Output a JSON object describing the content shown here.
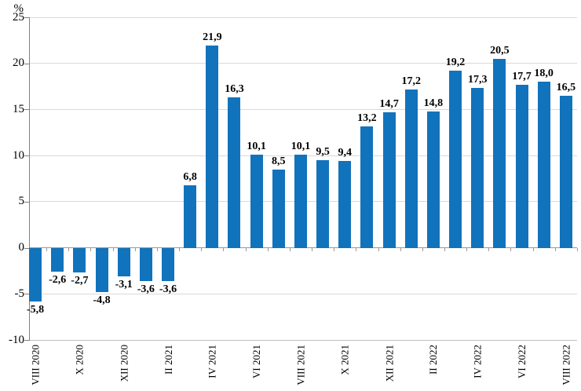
{
  "chart_data": {
    "type": "bar",
    "title": "",
    "xlabel": "",
    "ylabel": "%",
    "ylim": [
      -10,
      25
    ],
    "ytick_step": 5,
    "y_tick_labels": [
      "25",
      "20",
      "15",
      "10",
      "5",
      "0",
      "-5",
      "-10"
    ],
    "x_tick_labels": [
      "VIII 2020",
      "",
      "X 2020",
      "",
      "XII 2020",
      "",
      "II 2021",
      "",
      "IV 2021",
      "",
      "VI 2021",
      "",
      "VIII 2021",
      "",
      "X 2021",
      "",
      "XII 2021",
      "",
      "II 2022",
      "",
      "IV 2022",
      "",
      "VI 2022",
      "",
      "VIII 2022"
    ],
    "values": [
      -5.8,
      -2.6,
      -2.7,
      -4.8,
      -3.1,
      -3.6,
      -3.6,
      6.8,
      21.9,
      16.3,
      10.1,
      8.5,
      10.1,
      9.5,
      9.4,
      13.2,
      14.7,
      17.2,
      14.8,
      19.2,
      17.3,
      20.5,
      17.7,
      18.0,
      16.5
    ],
    "value_labels": [
      "-5,8",
      "-2,6",
      "-2,7",
      "-4,8",
      "-3,1",
      "-3,6",
      "-3,6",
      "6,8",
      "21,9",
      "16,3",
      "10,1",
      "8,5",
      "10,1",
      "9,5",
      "9,4",
      "13,2",
      "14,7",
      "17,2",
      "14,8",
      "19,2",
      "17,3",
      "20,5",
      "17,7",
      "18,0",
      "16,5"
    ],
    "grid": true,
    "legend": false,
    "bar_color": "#1173BC",
    "grid_color": "#D9D9D9",
    "zero_line_color": "#999999",
    "bottom_line_color": "#BFBFBF",
    "axis_color": "#808080",
    "text_color": "#000000"
  }
}
